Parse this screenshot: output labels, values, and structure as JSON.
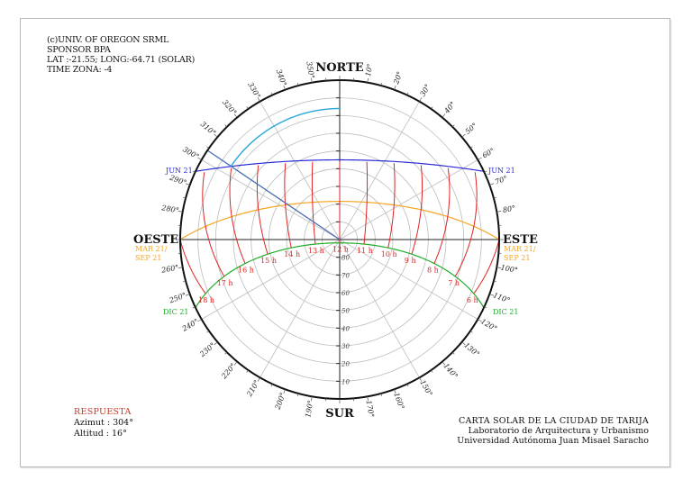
{
  "header": {
    "line1": "(c)UNIV. OF OREGON SRML",
    "line2": "SPONSOR BPA",
    "line3": "LAT :-21.55; LONG:-64.71 (SOLAR)",
    "line4": "TIME ZONA: -4"
  },
  "answer": {
    "title": "RESPUESTA",
    "azimuth": "Azimut : 304°",
    "altitude": "Altitud : 16°"
  },
  "credits": {
    "title": "CARTA SOLAR DE LA CIUDAD DE TARIJA",
    "lab": "Laboratorio de Arquitectura y Urbanismo",
    "university": "Universidad Autónoma Juan Misael Saracho"
  },
  "colors": {
    "jun": "#2b2bd6",
    "equinox": "#f5a623",
    "dec": "#1fae2a",
    "hour": "#e02424",
    "answer_line": "#4a6fb5",
    "answer_arc": "#2aa6d9",
    "grid": "#bdbdbd",
    "outline": "#111111"
  },
  "chart_data": {
    "type": "polar-sunpath",
    "title": "CARTA SOLAR DE LA CIUDAD DE TARIJA",
    "latitude": -21.55,
    "longitude": -64.71,
    "time_zone": -4,
    "cardinal_labels": {
      "N": "NORTE",
      "E": "ESTE",
      "S": "SUR",
      "W": "OESTE"
    },
    "azimuth_ticks": [
      10,
      20,
      30,
      40,
      50,
      60,
      70,
      80,
      100,
      110,
      120,
      130,
      140,
      150,
      160,
      170,
      190,
      200,
      210,
      220,
      230,
      240,
      250,
      260,
      280,
      290,
      300,
      310,
      320,
      330,
      340,
      350
    ],
    "altitude_rings": [
      10,
      20,
      30,
      40,
      50,
      60,
      70,
      80
    ],
    "date_curves": [
      {
        "name": "JUN 21",
        "label": "JUN 21",
        "noon_altitude": 45
      },
      {
        "name": "MAR 21/SEP 21",
        "label": "MAR 21/ SEP 21",
        "noon_altitude": 68.5
      },
      {
        "name": "DIC 21",
        "label": "DIC 21",
        "noon_altitude": 88
      }
    ],
    "hour_labels": [
      "6 h",
      "7 h",
      "8 h",
      "9 h",
      "10 h",
      "11 h",
      "12 h",
      "13 h",
      "14 h",
      "15 h",
      "16 h",
      "17 h",
      "18 h"
    ],
    "answer": {
      "azimuth": 304,
      "altitude": 16
    }
  }
}
